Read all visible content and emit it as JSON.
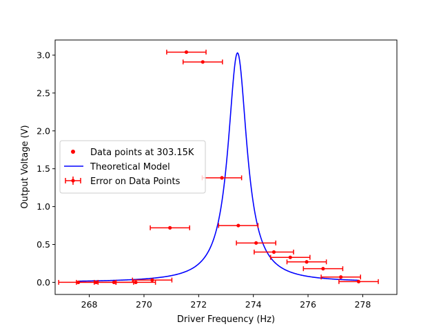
{
  "chart_data": {
    "type": "scatter",
    "xlabel": "Driver Frequency (Hz)",
    "ylabel": "Output Voltage (V)",
    "xlim": [
      266.75,
      279.25
    ],
    "ylim": [
      -0.16,
      3.2
    ],
    "xticks": [
      268,
      270,
      272,
      274,
      276,
      278
    ],
    "yticks": [
      0.0,
      0.5,
      1.0,
      1.5,
      2.0,
      2.5,
      3.0
    ],
    "xtick_labels": [
      "268",
      "270",
      "272",
      "274",
      "276",
      "278"
    ],
    "ytick_labels": [
      "0.0",
      "0.5",
      "1.0",
      "1.5",
      "2.0",
      "2.5",
      "3.0"
    ],
    "legend": {
      "location": "center-left",
      "entries": [
        "Data points at 303.15K",
        "Theoretical Model",
        "Error on Data Points"
      ]
    },
    "colors": {
      "data": "#ff0000",
      "model": "#0000ff"
    },
    "series": [
      {
        "name": "Data points at 303.15K",
        "kind": "points_with_xerr",
        "points": [
          {
            "x": 267.6,
            "y": 0.0,
            "xerr": 0.72
          },
          {
            "x": 268.25,
            "y": 0.0,
            "xerr": 0.72
          },
          {
            "x": 268.9,
            "y": 0.0,
            "xerr": 0.72
          },
          {
            "x": 269.7,
            "y": 0.0,
            "xerr": 0.72
          },
          {
            "x": 270.3,
            "y": 0.03,
            "xerr": 0.72
          },
          {
            "x": 270.95,
            "y": 0.72,
            "xerr": 0.72
          },
          {
            "x": 271.55,
            "y": 3.04,
            "xerr": 0.72
          },
          {
            "x": 272.15,
            "y": 2.91,
            "xerr": 0.72
          },
          {
            "x": 272.85,
            "y": 1.38,
            "xerr": 0.72
          },
          {
            "x": 273.45,
            "y": 0.75,
            "xerr": 0.72
          },
          {
            "x": 274.1,
            "y": 0.52,
            "xerr": 0.72
          },
          {
            "x": 274.75,
            "y": 0.4,
            "xerr": 0.72
          },
          {
            "x": 275.35,
            "y": 0.33,
            "xerr": 0.72
          },
          {
            "x": 275.95,
            "y": 0.27,
            "xerr": 0.72
          },
          {
            "x": 276.55,
            "y": 0.18,
            "xerr": 0.72
          },
          {
            "x": 277.2,
            "y": 0.07,
            "xerr": 0.72
          },
          {
            "x": 277.85,
            "y": 0.01,
            "xerr": 0.72
          }
        ]
      },
      {
        "name": "Theoretical Model",
        "kind": "line",
        "model": {
          "f0": 273.42,
          "peak": 3.03,
          "width": 0.42,
          "x_start": 267.6,
          "x_end": 277.85
        }
      }
    ]
  }
}
